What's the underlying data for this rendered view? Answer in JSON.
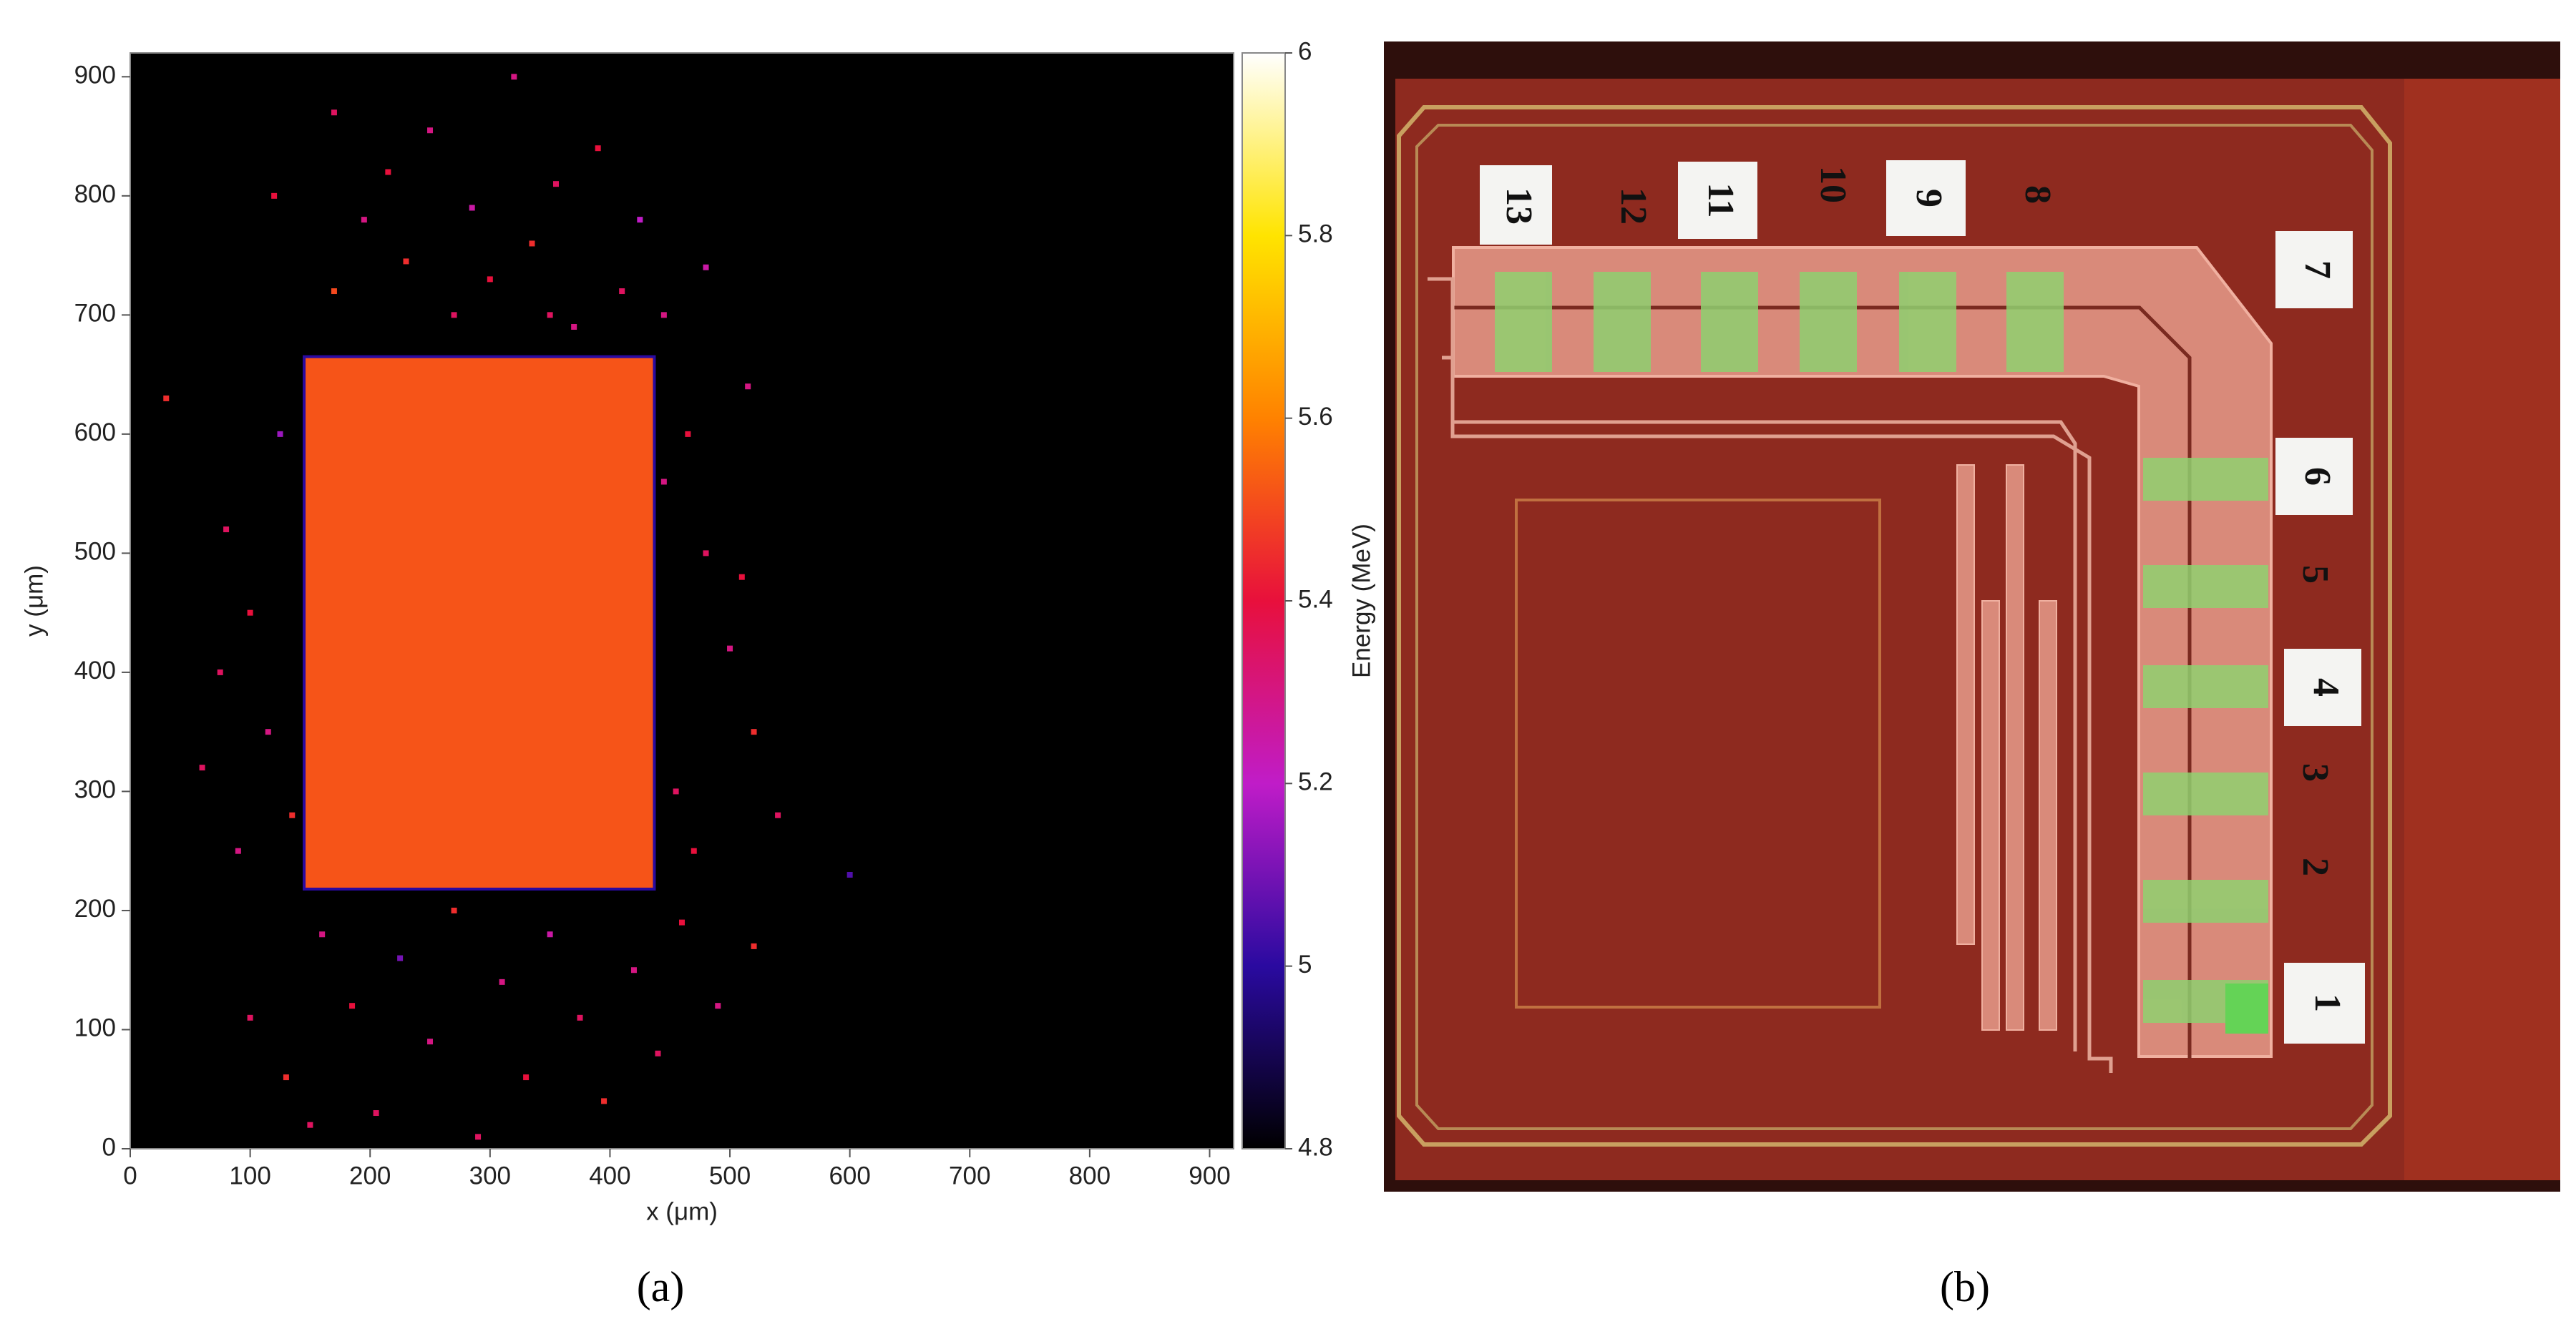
{
  "chart_data": [
    {
      "type": "heatmap",
      "x_label": "x (μm)",
      "y_label": "y (μm)",
      "colorbar_label": "Energy (MeV)",
      "xlim": [
        0,
        920
      ],
      "ylim": [
        0,
        920
      ],
      "xticks": [
        0,
        100,
        200,
        300,
        400,
        500,
        600,
        700,
        800,
        900
      ],
      "yticks": [
        0,
        100,
        200,
        300,
        400,
        500,
        600,
        700,
        800,
        900
      ],
      "clim": [
        4.8,
        6
      ],
      "cticks": [
        4.8,
        5,
        5.2,
        5.4,
        5.6,
        5.8,
        6
      ],
      "colormap": [
        "#000000",
        "#2a0aa0",
        "#c01cc8",
        "#e8103c",
        "#ff8200",
        "#ffe400",
        "#ffffff"
      ],
      "background": "#000000",
      "blocks": [
        {
          "x": [
            145,
            437
          ],
          "y": [
            218,
            665
          ],
          "value": 5.52
        }
      ],
      "points": {
        "x": [
          170,
          195,
          215,
          230,
          250,
          270,
          285,
          300,
          320,
          335,
          355,
          370,
          390,
          410,
          425,
          445,
          170,
          350,
          480,
          120,
          100,
          130,
          160,
          185,
          205,
          225,
          250,
          270,
          290,
          310,
          330,
          350,
          375,
          395,
          420,
          440,
          460,
          490,
          150,
          520,
          80,
          100,
          115,
          125,
          135,
          60,
          90,
          465,
          480,
          500,
          520,
          455,
          515,
          470,
          540,
          445,
          600,
          30,
          75,
          510
        ],
        "y": [
          870,
          780,
          820,
          745,
          855,
          700,
          790,
          730,
          900,
          760,
          810,
          690,
          840,
          720,
          780,
          700,
          720,
          700,
          740,
          800,
          110,
          60,
          180,
          120,
          30,
          160,
          90,
          200,
          10,
          140,
          60,
          180,
          110,
          40,
          150,
          80,
          190,
          120,
          20,
          170,
          520,
          450,
          350,
          600,
          280,
          320,
          250,
          600,
          500,
          420,
          350,
          300,
          640,
          250,
          280,
          560,
          230,
          630,
          400,
          480
        ],
        "values": [
          5.35,
          5.3,
          5.4,
          5.45,
          5.3,
          5.35,
          5.25,
          5.4,
          5.3,
          5.45,
          5.35,
          5.3,
          5.4,
          5.35,
          5.2,
          5.3,
          5.5,
          5.35,
          5.25,
          5.4,
          5.35,
          5.45,
          5.3,
          5.4,
          5.35,
          5.1,
          5.3,
          5.45,
          5.35,
          5.3,
          5.4,
          5.25,
          5.35,
          5.45,
          5.3,
          5.35,
          5.4,
          5.3,
          5.35,
          5.45,
          5.35,
          5.4,
          5.3,
          5.15,
          5.45,
          5.35,
          5.3,
          5.4,
          5.35,
          5.3,
          5.45,
          5.35,
          5.3,
          5.4,
          5.35,
          5.3,
          5.05,
          5.45,
          5.35,
          5.4
        ]
      }
    }
  ],
  "photo": {
    "pads": [
      "13",
      "12",
      "11",
      "10",
      "9",
      "8",
      "7",
      "6",
      "5",
      "4",
      "3",
      "2",
      "1"
    ]
  },
  "captions": [
    "(a)",
    "(b)"
  ]
}
